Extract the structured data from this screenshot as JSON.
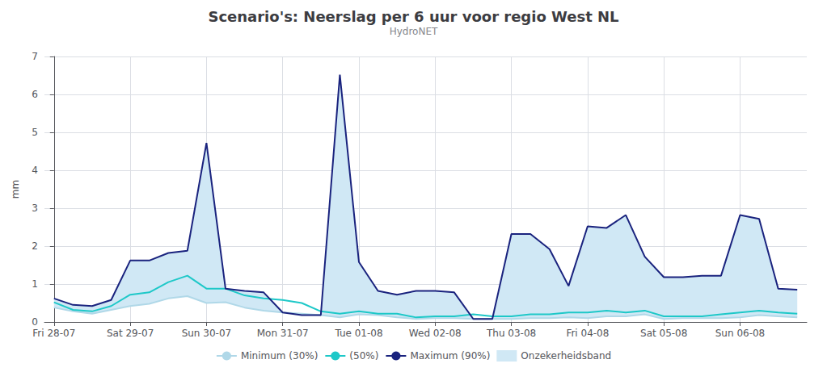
{
  "chart_data": {
    "type": "line",
    "title": "Scenario's: Neerslag per 6 uur voor regio West NL",
    "subtitle": "HydroNET",
    "ylabel": "mm",
    "categories": [
      "Fri 28-07",
      null,
      null,
      null,
      "Sat 29-07",
      null,
      null,
      null,
      "Sun 30-07",
      null,
      null,
      null,
      "Mon 31-07",
      null,
      null,
      null,
      "Tue 01-08",
      null,
      null,
      null,
      "Wed 02-08",
      null,
      null,
      null,
      "Thu 03-08",
      null,
      null,
      null,
      "Fri 04-08",
      null,
      null,
      null,
      "Sat 05-08",
      null,
      null,
      null,
      "Sun 06-08",
      null,
      null,
      null
    ],
    "series": [
      {
        "name": "Minimum (30%)",
        "color": "#b0d8e8",
        "values": [
          0.38,
          0.28,
          0.22,
          0.32,
          0.42,
          0.48,
          0.62,
          0.68,
          0.5,
          0.52,
          0.38,
          0.3,
          0.25,
          0.22,
          0.18,
          0.12,
          0.2,
          0.18,
          0.12,
          0.08,
          0.1,
          0.1,
          0.08,
          0.08,
          0.08,
          0.1,
          0.1,
          0.12,
          0.1,
          0.15,
          0.15,
          0.2,
          0.08,
          0.1,
          0.1,
          0.1,
          0.12,
          0.18,
          0.15,
          0.12
        ]
      },
      {
        "name": "(50%)",
        "color": "#1ec8c8",
        "values": [
          0.52,
          0.32,
          0.28,
          0.42,
          0.72,
          0.78,
          1.05,
          1.22,
          0.88,
          0.88,
          0.7,
          0.62,
          0.58,
          0.5,
          0.28,
          0.22,
          0.28,
          0.22,
          0.22,
          0.12,
          0.15,
          0.15,
          0.2,
          0.15,
          0.15,
          0.2,
          0.2,
          0.25,
          0.25,
          0.3,
          0.25,
          0.3,
          0.15,
          0.15,
          0.15,
          0.2,
          0.25,
          0.3,
          0.25,
          0.22
        ]
      },
      {
        "name": "Maximum (90%)",
        "color": "#1a237e",
        "values": [
          0.62,
          0.45,
          0.42,
          0.58,
          1.62,
          1.62,
          1.82,
          1.88,
          4.72,
          0.88,
          0.82,
          0.78,
          0.25,
          0.18,
          0.18,
          6.52,
          1.58,
          0.82,
          0.72,
          0.82,
          0.82,
          0.78,
          0.08,
          0.08,
          2.32,
          2.32,
          1.92,
          0.95,
          2.52,
          2.48,
          2.82,
          1.72,
          1.18,
          1.18,
          1.22,
          1.22,
          2.82,
          2.72,
          0.88,
          0.85
        ]
      },
      {
        "name": "Onzekerheidsband",
        "type": "band",
        "color": "#d0e8f5",
        "lower": [
          0.38,
          0.28,
          0.22,
          0.32,
          0.42,
          0.48,
          0.62,
          0.68,
          0.5,
          0.52,
          0.38,
          0.3,
          0.25,
          0.22,
          0.18,
          0.12,
          0.2,
          0.18,
          0.12,
          0.08,
          0.1,
          0.1,
          0.08,
          0.08,
          0.08,
          0.1,
          0.1,
          0.12,
          0.1,
          0.15,
          0.15,
          0.2,
          0.08,
          0.1,
          0.1,
          0.1,
          0.12,
          0.18,
          0.15,
          0.12
        ],
        "upper": [
          0.62,
          0.45,
          0.42,
          0.58,
          1.62,
          1.62,
          1.82,
          1.88,
          4.72,
          0.88,
          0.82,
          0.78,
          0.25,
          0.18,
          0.18,
          6.52,
          1.58,
          0.82,
          0.72,
          0.82,
          0.82,
          0.78,
          0.08,
          0.08,
          2.32,
          2.32,
          1.92,
          0.95,
          2.52,
          2.48,
          2.82,
          1.72,
          1.18,
          1.18,
          1.22,
          1.22,
          2.82,
          2.72,
          0.88,
          0.85
        ]
      }
    ],
    "ylim": [
      0,
      7
    ],
    "yticks": [
      0,
      1,
      2,
      3,
      4,
      5,
      6,
      7
    ],
    "grid": true,
    "legend": "bottom"
  }
}
